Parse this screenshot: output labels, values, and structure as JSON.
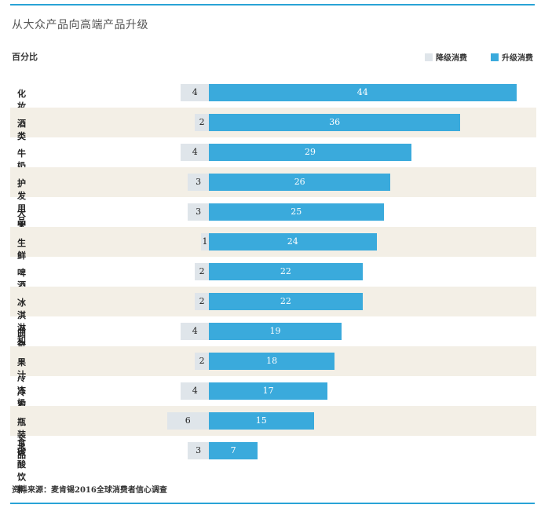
{
  "title": "从大众产品向高端产品升级",
  "unit_label": "百分比",
  "legend": {
    "down_label": "降级消费",
    "up_label": "升级消费",
    "down_color": "#dfe5ea",
    "up_color": "#3aaadc"
  },
  "source": "资料来源：麦肯锡2016全球消费者信心调查",
  "chart_data": {
    "type": "bar",
    "orientation": "horizontal-diverging",
    "categories": [
      "化妆品",
      "酒类",
      "牛奶",
      "护发用品",
      "大米",
      "生鲜",
      "啤酒",
      "冰淇淋和其他冷冻奶制品",
      "曲奇",
      "果汁",
      "冷冻预制食品",
      "瓶装水",
      "碳酸饮料"
    ],
    "series": [
      {
        "name": "降级消费",
        "values": [
          4,
          2,
          4,
          3,
          3,
          1,
          2,
          2,
          4,
          2,
          4,
          6,
          3
        ]
      },
      {
        "name": "升级消费",
        "values": [
          44,
          36,
          29,
          26,
          25,
          24,
          22,
          22,
          19,
          18,
          17,
          15,
          7
        ]
      }
    ],
    "row_shading": "alternating",
    "grid": false,
    "legend_position": "top-right"
  }
}
